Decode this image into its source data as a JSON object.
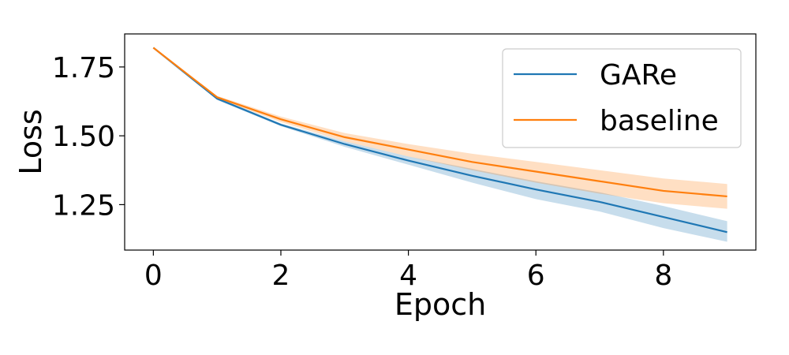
{
  "chart_data": {
    "type": "line",
    "xlabel": "Epoch",
    "ylabel": "Loss",
    "xlim": [
      -0.45,
      9.45
    ],
    "ylim": [
      1.085,
      1.87
    ],
    "x_ticks": [
      0,
      2,
      4,
      6,
      8
    ],
    "y_ticks": [
      1.25,
      1.5,
      1.75
    ],
    "y_tick_labels": [
      "1.25",
      "1.50",
      "1.75"
    ],
    "grid": false,
    "legend_position": "top-right",
    "x": [
      0,
      1,
      2,
      3,
      4,
      5,
      6,
      7,
      8,
      9
    ],
    "series": [
      {
        "name": "GARe",
        "color": "#1f77b4",
        "values": [
          1.82,
          1.635,
          1.54,
          1.47,
          1.41,
          1.355,
          1.305,
          1.26,
          1.205,
          1.15
        ],
        "lower": [
          1.82,
          1.63,
          1.535,
          1.46,
          1.395,
          1.33,
          1.27,
          1.225,
          1.165,
          1.115
        ],
        "upper": [
          1.82,
          1.64,
          1.545,
          1.48,
          1.425,
          1.38,
          1.335,
          1.295,
          1.245,
          1.19
        ]
      },
      {
        "name": "baseline",
        "color": "#ff7f0e",
        "values": [
          1.82,
          1.64,
          1.56,
          1.495,
          1.45,
          1.405,
          1.37,
          1.335,
          1.3,
          1.28
        ],
        "lower": [
          1.82,
          1.635,
          1.55,
          1.48,
          1.425,
          1.375,
          1.33,
          1.29,
          1.255,
          1.235
        ],
        "upper": [
          1.82,
          1.645,
          1.57,
          1.51,
          1.47,
          1.435,
          1.405,
          1.375,
          1.345,
          1.325
        ]
      }
    ]
  }
}
